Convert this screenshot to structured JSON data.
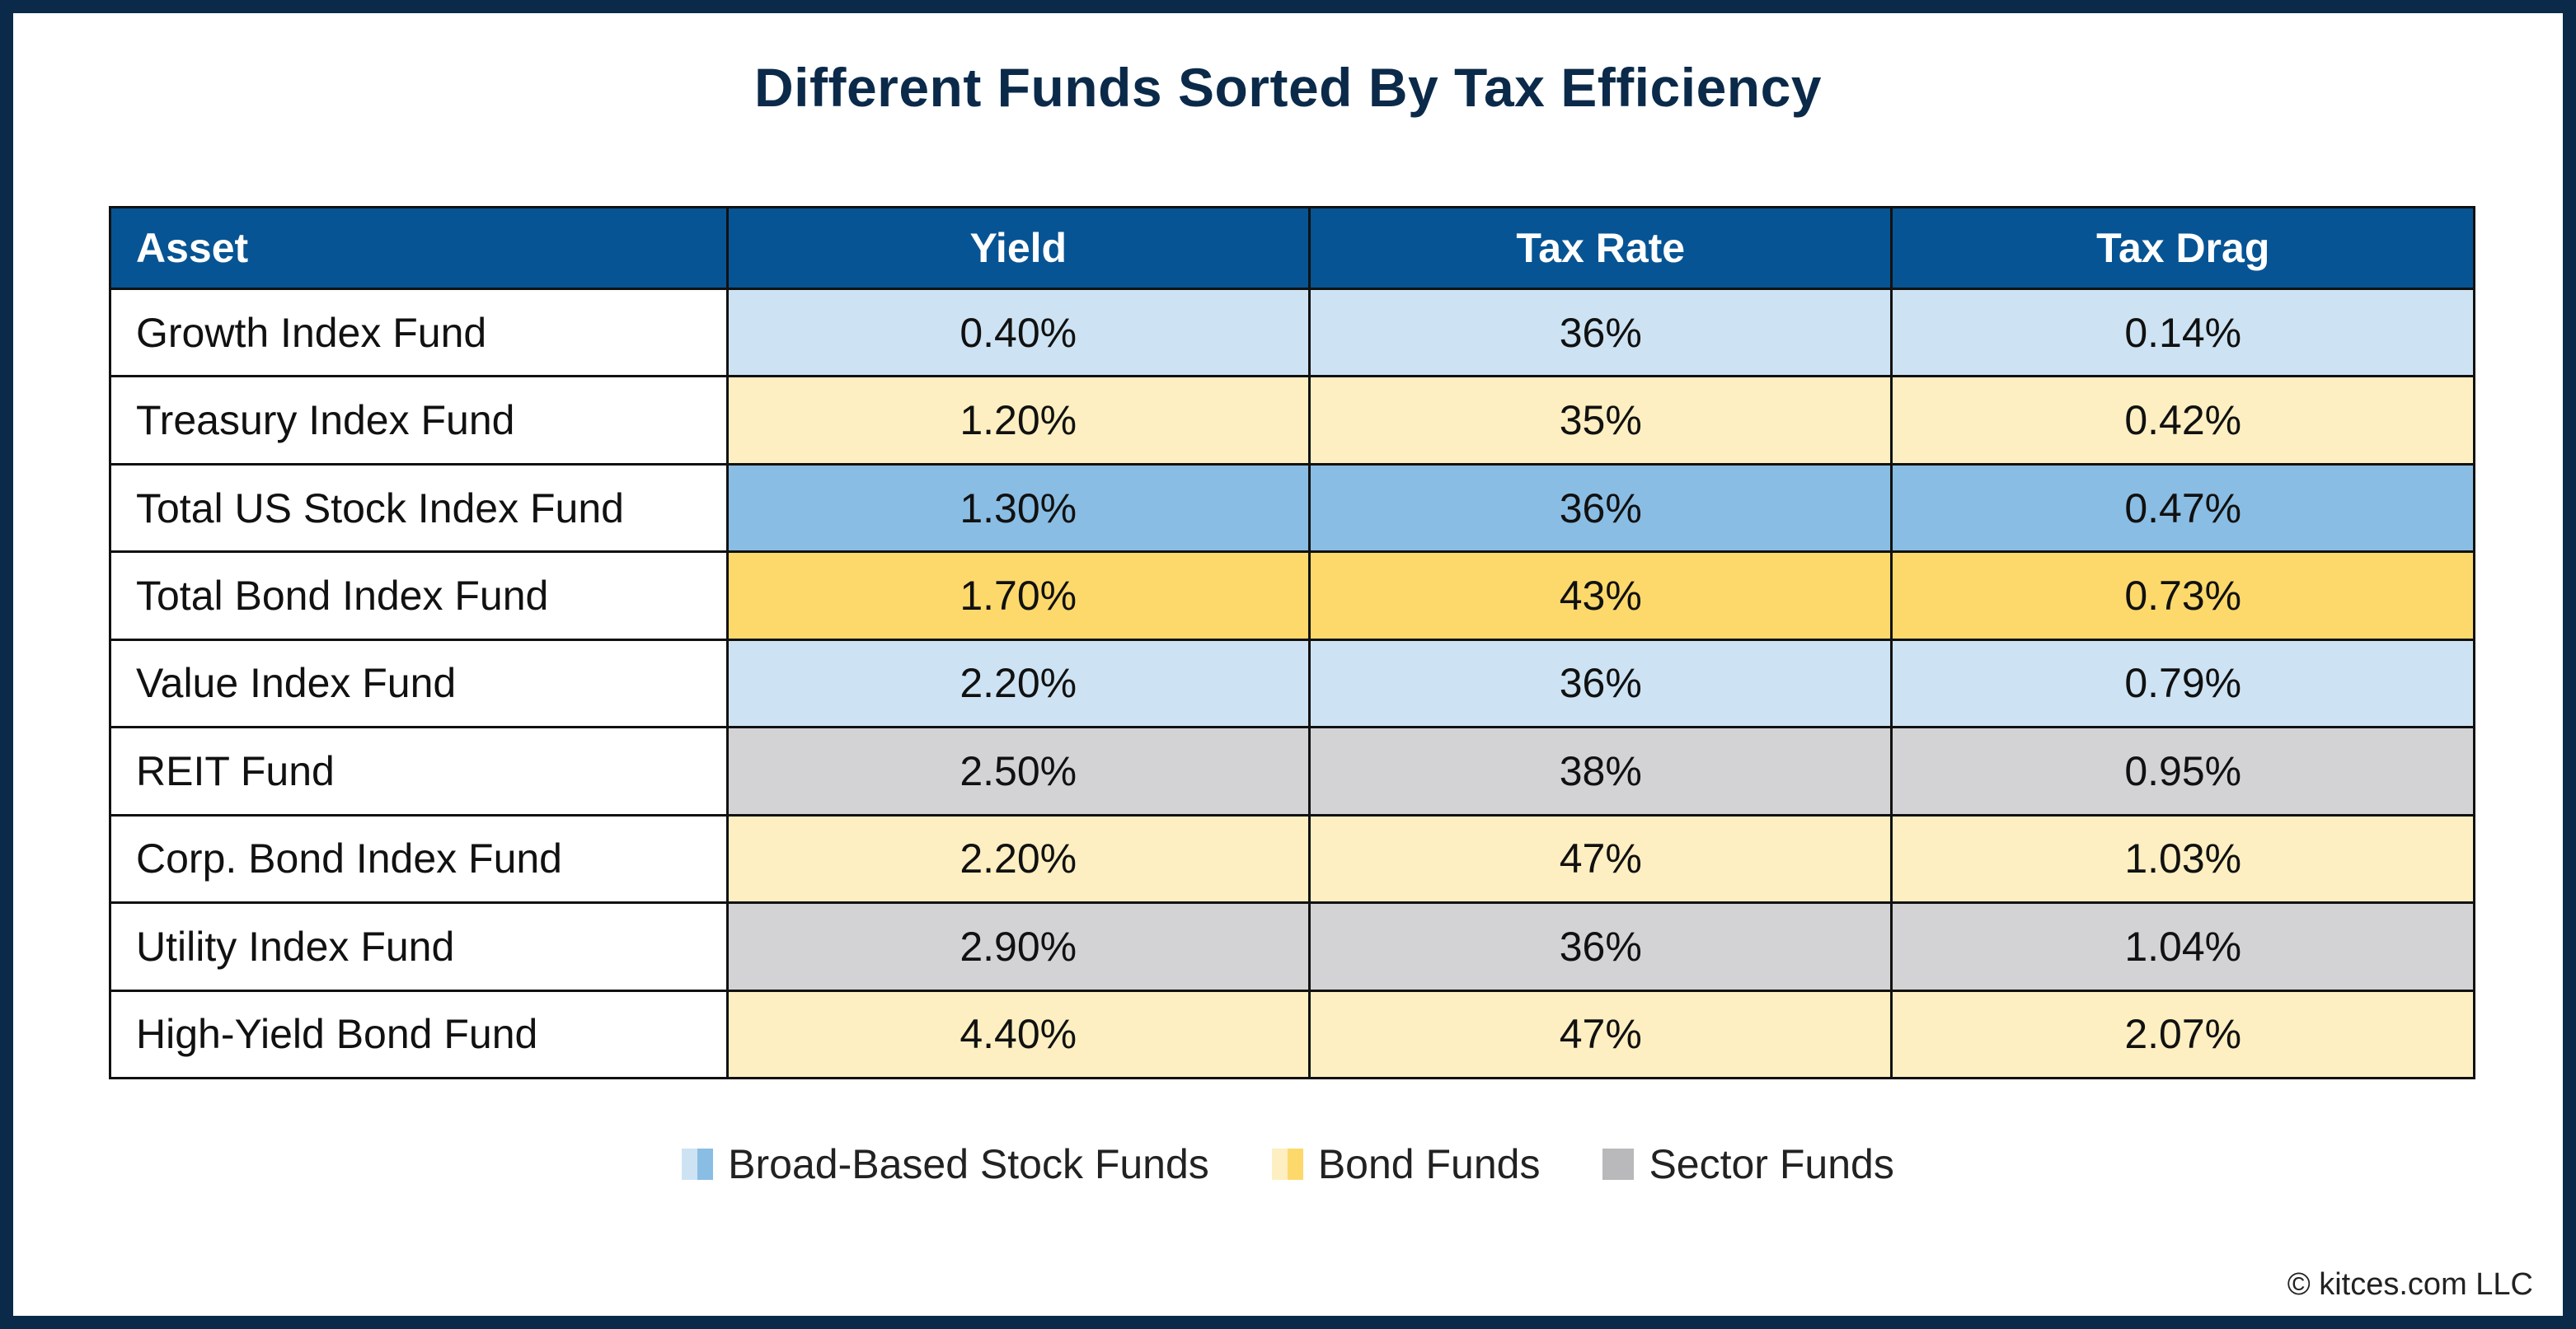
{
  "title": "Different Funds Sorted By Tax Efficiency",
  "colors": {
    "header_bg": "#075494",
    "stock_light": "#cde3f3",
    "stock_dark": "#89bde4",
    "bond_light": "#fdefc1",
    "bond_dark": "#fdd96b",
    "sector": "#d3d3d5",
    "frame": "#0b2a4a"
  },
  "chart_data": {
    "type": "table",
    "columns": [
      "Asset",
      "Yield",
      "Tax Rate",
      "Tax Drag"
    ],
    "rows": [
      {
        "asset": "Growth Index Fund",
        "yield": "0.40%",
        "tax_rate": "36%",
        "tax_drag": "0.14%",
        "category": "stock",
        "shade": "light"
      },
      {
        "asset": "Treasury Index Fund",
        "yield": "1.20%",
        "tax_rate": "35%",
        "tax_drag": "0.42%",
        "category": "bond",
        "shade": "light"
      },
      {
        "asset": "Total US Stock Index Fund",
        "yield": "1.30%",
        "tax_rate": "36%",
        "tax_drag": "0.47%",
        "category": "stock",
        "shade": "dark"
      },
      {
        "asset": "Total Bond Index Fund",
        "yield": "1.70%",
        "tax_rate": "43%",
        "tax_drag": "0.73%",
        "category": "bond",
        "shade": "dark"
      },
      {
        "asset": "Value Index Fund",
        "yield": "2.20%",
        "tax_rate": "36%",
        "tax_drag": "0.79%",
        "category": "stock",
        "shade": "light"
      },
      {
        "asset": "REIT Fund",
        "yield": "2.50%",
        "tax_rate": "38%",
        "tax_drag": "0.95%",
        "category": "sector",
        "shade": "light"
      },
      {
        "asset": "Corp. Bond Index Fund",
        "yield": "2.20%",
        "tax_rate": "47%",
        "tax_drag": "1.03%",
        "category": "bond",
        "shade": "light"
      },
      {
        "asset": "Utility Index Fund",
        "yield": "2.90%",
        "tax_rate": "36%",
        "tax_drag": "1.04%",
        "category": "sector",
        "shade": "light"
      },
      {
        "asset": "High-Yield Bond Fund",
        "yield": "4.40%",
        "tax_rate": "47%",
        "tax_drag": "2.07%",
        "category": "bond",
        "shade": "light"
      }
    ],
    "legend": [
      {
        "label": "Broad-Based Stock Funds",
        "colors": [
          "#cde3f3",
          "#89bde4"
        ]
      },
      {
        "label": "Bond Funds",
        "colors": [
          "#fdefc1",
          "#fdd96b"
        ]
      },
      {
        "label": "Sector Funds",
        "colors": [
          "#b9b9bc",
          "#b9b9bc"
        ]
      }
    ]
  },
  "copyright": "© kitces.com LLC"
}
